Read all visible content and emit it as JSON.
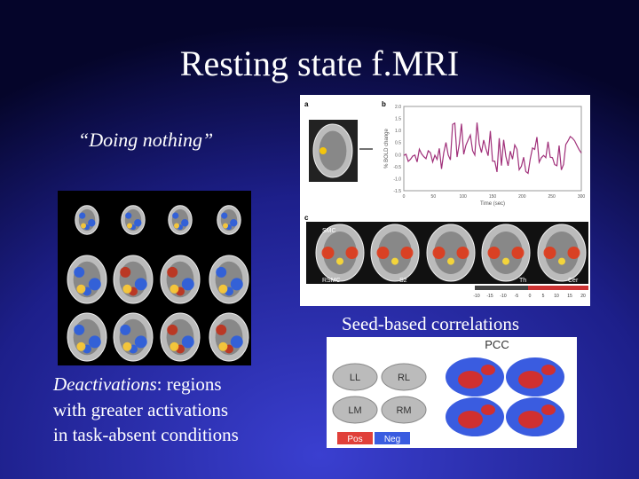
{
  "title": "Resting state f.MRI",
  "captions": {
    "doing_nothing": "“Doing nothing”",
    "seed_based": "Seed-based correlations",
    "deactivations": {
      "term": "Deactivations",
      "lines": [
        ": regions",
        "with greater activations",
        "in task-absent conditions"
      ]
    }
  },
  "figure_timecourse": {
    "panels": [
      "a",
      "b",
      "c"
    ],
    "y_axis": "% BOLD change",
    "x_axis": "Time (sec)",
    "yticks": [
      "2.0",
      "1.5",
      "1.0",
      "0.5",
      "0.0",
      "-0.5",
      "-1.0",
      "-1.5"
    ],
    "xticks": [
      "0",
      "50",
      "100",
      "150",
      "200",
      "250",
      "300"
    ],
    "regions": [
      "SMC",
      "RSMC",
      "S2",
      "Th",
      "Cer"
    ],
    "colorbar": [
      "-10",
      "-15",
      "-10",
      "-5",
      "0",
      "5",
      "10",
      "15",
      "20"
    ]
  },
  "figure_pcc": {
    "title": "PCC",
    "regions": [
      "LL",
      "RL",
      "LM",
      "RM"
    ],
    "legend": [
      "Pos",
      "Neg"
    ]
  }
}
